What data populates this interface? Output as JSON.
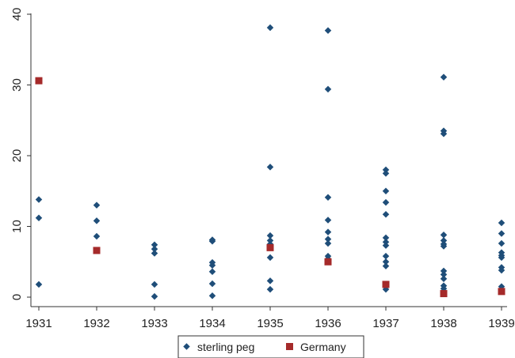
{
  "chart_data": {
    "type": "scatter",
    "x_categories": [
      "1931",
      "1932",
      "1933",
      "1934",
      "1935",
      "1936",
      "1937",
      "1938",
      "1939"
    ],
    "yticks": [
      "0",
      "10",
      "20",
      "30",
      "40"
    ],
    "ylim": [
      0,
      40
    ],
    "grid": false,
    "legend_position": "bottom-center",
    "series": [
      {
        "name": "sterling peg",
        "marker": "diamond",
        "color": "#1f4e79",
        "points": [
          {
            "x": "1931",
            "y": 13.8
          },
          {
            "x": "1931",
            "y": 11.2
          },
          {
            "x": "1931",
            "y": 1.8
          },
          {
            "x": "1932",
            "y": 13.0
          },
          {
            "x": "1932",
            "y": 10.8
          },
          {
            "x": "1932",
            "y": 8.6
          },
          {
            "x": "1933",
            "y": 7.4
          },
          {
            "x": "1933",
            "y": 6.8
          },
          {
            "x": "1933",
            "y": 6.2
          },
          {
            "x": "1933",
            "y": 1.8
          },
          {
            "x": "1933",
            "y": 0.1
          },
          {
            "x": "1934",
            "y": 8.1
          },
          {
            "x": "1934",
            "y": 7.9
          },
          {
            "x": "1934",
            "y": 4.9
          },
          {
            "x": "1934",
            "y": 4.5
          },
          {
            "x": "1934",
            "y": 3.6
          },
          {
            "x": "1934",
            "y": 1.9
          },
          {
            "x": "1934",
            "y": 0.2
          },
          {
            "x": "1935",
            "y": 38.1
          },
          {
            "x": "1935",
            "y": 18.4
          },
          {
            "x": "1935",
            "y": 8.7
          },
          {
            "x": "1935",
            "y": 8.0
          },
          {
            "x": "1935",
            "y": 7.5
          },
          {
            "x": "1935",
            "y": 5.6
          },
          {
            "x": "1935",
            "y": 2.3
          },
          {
            "x": "1935",
            "y": 1.1
          },
          {
            "x": "1936",
            "y": 37.7
          },
          {
            "x": "1936",
            "y": 29.4
          },
          {
            "x": "1936",
            "y": 14.1
          },
          {
            "x": "1936",
            "y": 10.9
          },
          {
            "x": "1936",
            "y": 9.2
          },
          {
            "x": "1936",
            "y": 8.2
          },
          {
            "x": "1936",
            "y": 7.6
          },
          {
            "x": "1936",
            "y": 5.8
          },
          {
            "x": "1936",
            "y": 5.4
          },
          {
            "x": "1937",
            "y": 18.0
          },
          {
            "x": "1937",
            "y": 17.5
          },
          {
            "x": "1937",
            "y": 15.0
          },
          {
            "x": "1937",
            "y": 13.4
          },
          {
            "x": "1937",
            "y": 11.7
          },
          {
            "x": "1937",
            "y": 8.4
          },
          {
            "x": "1937",
            "y": 7.8
          },
          {
            "x": "1937",
            "y": 7.3
          },
          {
            "x": "1937",
            "y": 5.8
          },
          {
            "x": "1937",
            "y": 5.0
          },
          {
            "x": "1937",
            "y": 4.4
          },
          {
            "x": "1937",
            "y": 1.1
          },
          {
            "x": "1938",
            "y": 31.1
          },
          {
            "x": "1938",
            "y": 23.5
          },
          {
            "x": "1938",
            "y": 23.1
          },
          {
            "x": "1938",
            "y": 8.8
          },
          {
            "x": "1938",
            "y": 8.0
          },
          {
            "x": "1938",
            "y": 7.5
          },
          {
            "x": "1938",
            "y": 7.2
          },
          {
            "x": "1938",
            "y": 3.7
          },
          {
            "x": "1938",
            "y": 3.2
          },
          {
            "x": "1938",
            "y": 2.6
          },
          {
            "x": "1938",
            "y": 1.6
          },
          {
            "x": "1938",
            "y": 1.2
          },
          {
            "x": "1939",
            "y": 10.5
          },
          {
            "x": "1939",
            "y": 9.0
          },
          {
            "x": "1939",
            "y": 7.6
          },
          {
            "x": "1939",
            "y": 6.3
          },
          {
            "x": "1939",
            "y": 5.9
          },
          {
            "x": "1939",
            "y": 5.6
          },
          {
            "x": "1939",
            "y": 4.2
          },
          {
            "x": "1939",
            "y": 3.8
          },
          {
            "x": "1939",
            "y": 1.5
          }
        ]
      },
      {
        "name": "Germany",
        "marker": "square",
        "color": "#a52a2a",
        "points": [
          {
            "x": "1931",
            "y": 30.6
          },
          {
            "x": "1932",
            "y": 6.6
          },
          {
            "x": "1935",
            "y": 7.0
          },
          {
            "x": "1936",
            "y": 5.0
          },
          {
            "x": "1937",
            "y": 1.8
          },
          {
            "x": "1938",
            "y": 0.5
          },
          {
            "x": "1939",
            "y": 0.8
          }
        ]
      }
    ]
  }
}
